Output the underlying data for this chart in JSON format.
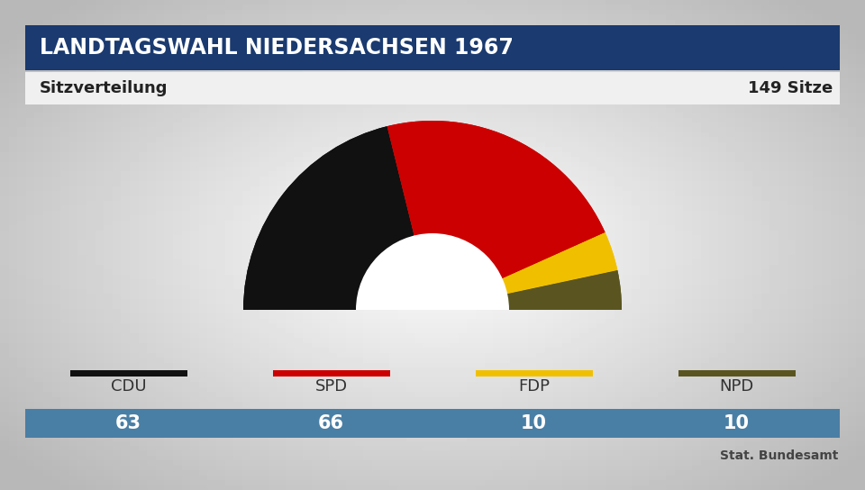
{
  "title": "LANDTAGSWAHL NIEDERSACHSEN 1967",
  "subtitle_left": "Sitzverteilung",
  "subtitle_right": "149 Sitze",
  "parties": [
    "CDU",
    "SPD",
    "FDP",
    "NPD"
  ],
  "seats": [
    63,
    66,
    10,
    10
  ],
  "total_seats": 149,
  "colors": [
    "#111111",
    "#cc0000",
    "#f0c000",
    "#5a5520"
  ],
  "legend_colors": [
    "#111111",
    "#cc0000",
    "#f0c000",
    "#5a5520"
  ],
  "title_bg": "#1a3a70",
  "title_fg": "#ffffff",
  "subtitle_fg": "#222222",
  "bar_bg": "#4a7fa5",
  "bar_fg": "#ffffff",
  "source_text": "Stat. Bundesamt",
  "bg_color_center": "#b8b8b8",
  "bg_color_edge": "#d0d0d0"
}
